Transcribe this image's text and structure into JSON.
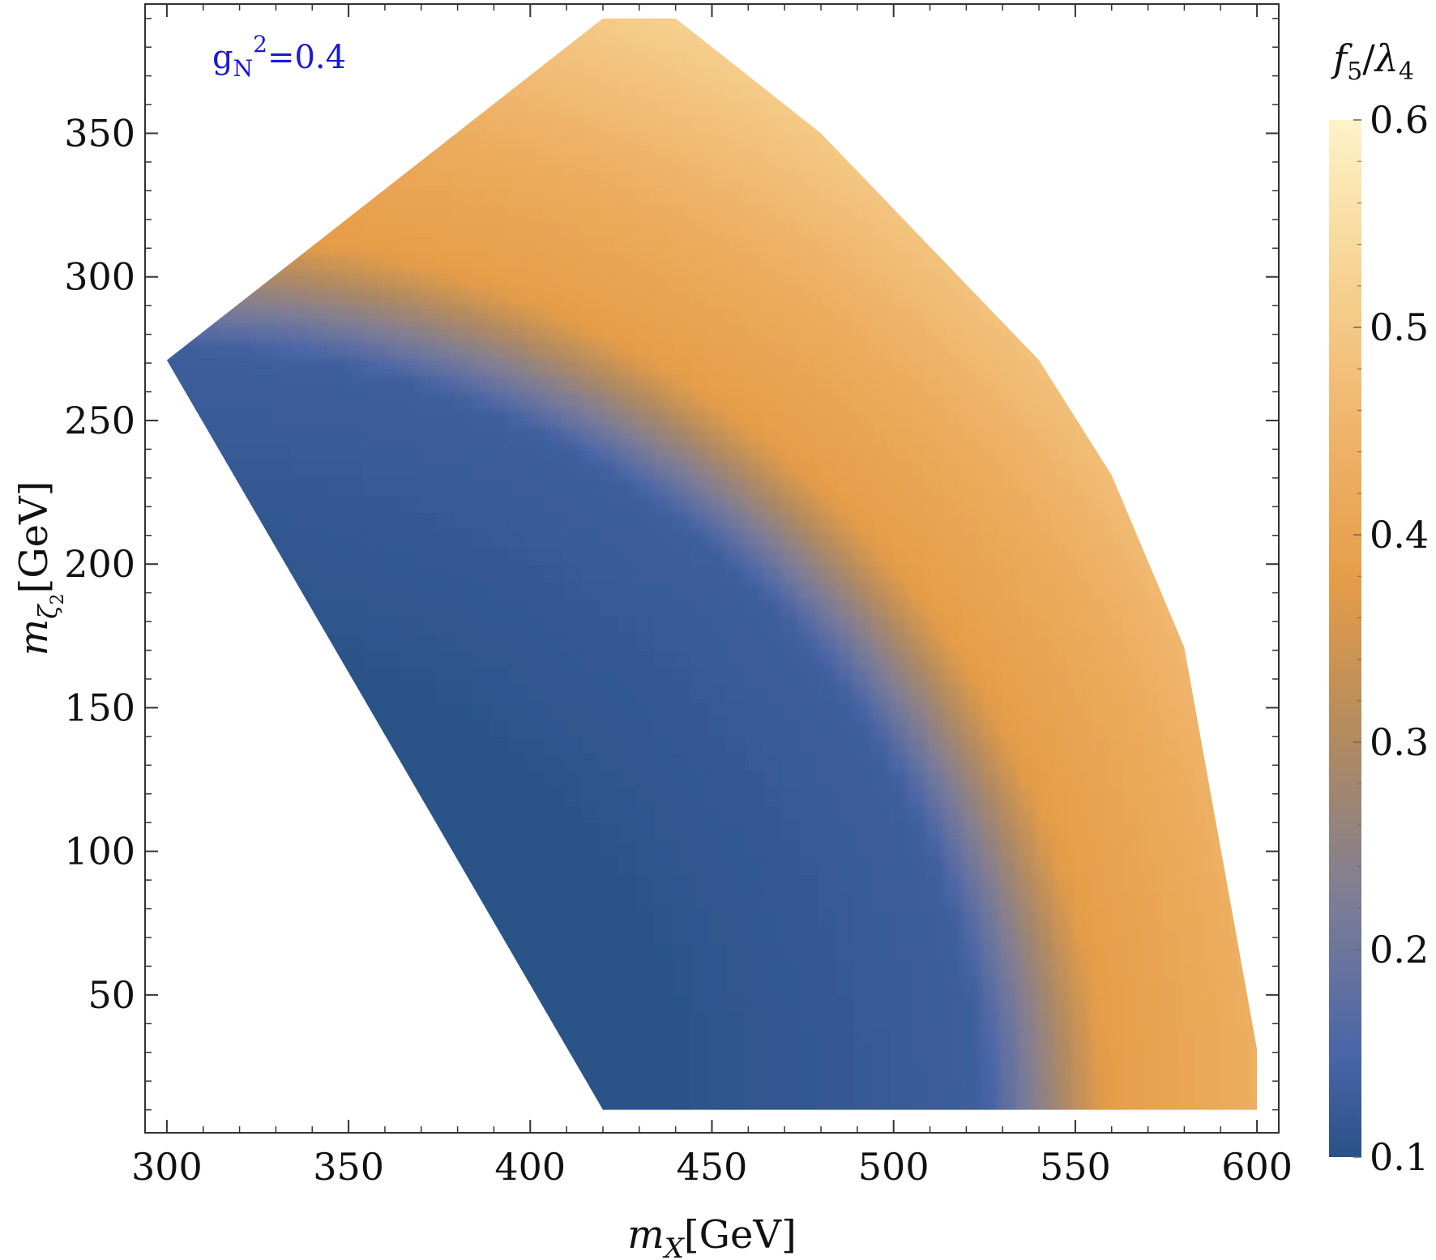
{
  "chart_data": {
    "type": "heatmap",
    "title": "",
    "xlabel": {
      "main": "m",
      "sub": "X",
      "unit": "[GeV]"
    },
    "ylabel": {
      "main": "m",
      "sub": "ζ",
      "subsub": "2",
      "unit": "[GeV]"
    },
    "xlim": [
      294,
      606
    ],
    "ylim": [
      2,
      395
    ],
    "x_ticks": [
      300,
      350,
      400,
      450,
      500,
      550,
      600
    ],
    "y_ticks": [
      50,
      100,
      150,
      200,
      250,
      300,
      350
    ],
    "x_tick_labels": [
      "300",
      "350",
      "400",
      "450",
      "500",
      "550",
      "600"
    ],
    "y_tick_labels": [
      "50",
      "100",
      "150",
      "200",
      "250",
      "300",
      "350"
    ],
    "annotation": {
      "base": "g",
      "sub": "N",
      "sup": "2",
      "rest": "=0.4"
    },
    "colorbar": {
      "label": {
        "f": "f",
        "fsub": "5",
        "slash": "/",
        "lam": "λ",
        "lamsub": "4"
      },
      "min": 0.1,
      "max": 0.6,
      "ticks": [
        0.1,
        0.2,
        0.3,
        0.4,
        0.5,
        0.6
      ],
      "tick_labels": [
        "0.1",
        "0.2",
        "0.3",
        "0.4",
        "0.5",
        "0.6"
      ],
      "colormap": [
        {
          "v": 0.1,
          "color": "#2a5288"
        },
        {
          "v": 0.15,
          "color": "#4a66a8"
        },
        {
          "v": 0.22,
          "color": "#7b7c98"
        },
        {
          "v": 0.3,
          "color": "#b08a60"
        },
        {
          "v": 0.38,
          "color": "#e69d48"
        },
        {
          "v": 0.45,
          "color": "#efb46a"
        },
        {
          "v": 0.52,
          "color": "#f6d08f"
        },
        {
          "v": 0.6,
          "color": "#fef3c8"
        }
      ]
    },
    "region_boundary": [
      [
        300,
        271
      ],
      [
        420,
        390
      ],
      [
        440,
        390
      ],
      [
        480,
        350
      ],
      [
        540,
        271
      ],
      [
        560,
        231
      ],
      [
        580,
        171
      ],
      [
        600,
        31
      ],
      [
        600,
        10
      ],
      [
        420,
        10
      ],
      [
        300,
        271
      ]
    ],
    "grid": false
  }
}
